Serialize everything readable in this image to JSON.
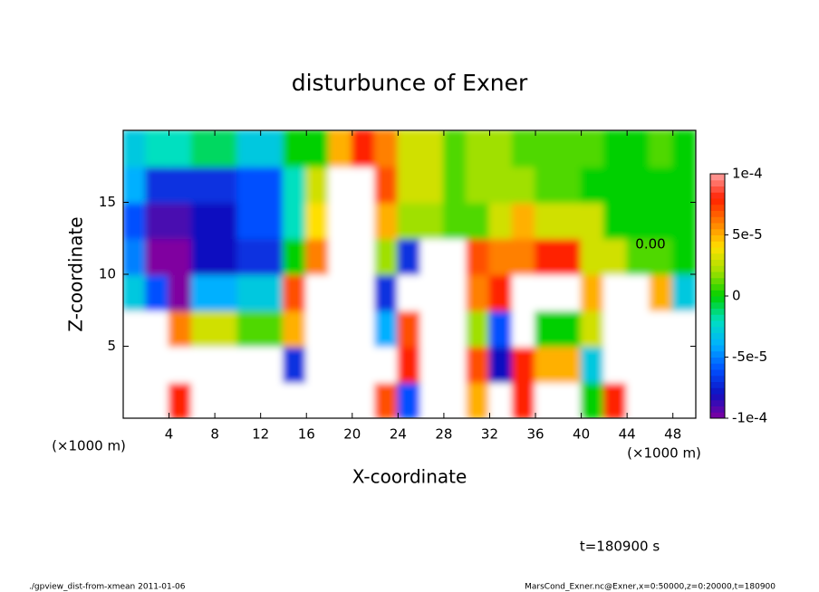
{
  "chart_data": {
    "type": "heatmap",
    "title": "disturbunce of Exner",
    "xlabel": "X-coordinate",
    "ylabel": "Z-coordinate",
    "xunit_left": "(×1000 m)",
    "xunit_right": "(×1000 m)",
    "contour_label": "0.00",
    "time_label": "t=180900 s",
    "footer_left": "./gpview_dist-from-xmean   2011-01-06",
    "footer_right": "MarsCond_Exner.nc@Exner,x=0:50000,z=0:20000,t=180900",
    "xlim": [
      0,
      50
    ],
    "ylim": [
      0,
      20
    ],
    "xticks": [
      4,
      8,
      12,
      16,
      20,
      24,
      28,
      32,
      36,
      40,
      44,
      48
    ],
    "yticks": [
      5,
      10,
      15
    ],
    "clim": [
      -0.0001,
      0.0001
    ],
    "cticks": [
      {
        "value": 0.0001,
        "label": "1e-4"
      },
      {
        "value": 5e-05,
        "label": "5e-5"
      },
      0,
      {
        "value": -5e-05,
        "label": "-5e-5"
      },
      {
        "value": -0.0001,
        "label": "-1e-4"
      }
    ],
    "colormap": [
      "#8000a0",
      "#1010c0",
      "#0050ff",
      "#00b0ff",
      "#00e0c0",
      "#00d000",
      "#a0e000",
      "#ffe000",
      "#ff8000",
      "#ff2000",
      "#ffa0a0"
    ],
    "out_of_range_color": "#ffffff",
    "x": [
      1,
      3,
      5,
      7,
      9,
      11,
      13,
      15,
      17,
      19,
      21,
      23,
      25,
      27,
      29,
      31,
      33,
      35,
      37,
      39,
      41,
      43,
      45,
      47,
      49
    ],
    "y": [
      1.25,
      3.75,
      6.25,
      8.75,
      11.25,
      13.75,
      16.25,
      18.75
    ],
    "z": [
      [
        -0.00016,
        -0.00011,
        8e-05,
        0.00012,
        0.00012,
        0.00011,
        0.00011,
        -0.00013,
        0.00011,
        0.00012,
        0.00012,
        7e-05,
        -6e-05,
        0.00012,
        0.00012,
        5e-05,
        0.00011,
        8e-05,
        0.00011,
        0.00011,
        0,
        8e-05,
        0.00012,
        0.00011,
        0.00011
      ],
      [
        -0.00014,
        -0.00011,
        0.00011,
        0.00012,
        0.00012,
        0.00013,
        0.00013,
        -7e-05,
        0.00011,
        0.00013,
        0.00013,
        0.00011,
        8e-05,
        0.00012,
        0.00012,
        7e-05,
        -8e-05,
        8e-05,
        5e-05,
        5e-05,
        -3e-05,
        0.00011,
        0.00014,
        -0.00013,
        -0.00015
      ],
      [
        -0.00015,
        -0.00012,
        6e-05,
        3e-05,
        3e-05,
        1e-05,
        1e-05,
        5e-05,
        0.00013,
        0.00013,
        0.00012,
        -4e-05,
        7e-05,
        0.00011,
        0.00011,
        2e-05,
        -6e-05,
        0.00011,
        0,
        0,
        3e-05,
        0.00014,
        0.0002,
        -0.00014,
        -0.00016
      ],
      [
        -3e-05,
        -6e-05,
        -0.0001,
        -4e-05,
        -4e-05,
        -3e-05,
        -3e-05,
        7e-05,
        0.00015,
        0.00012,
        0.00012,
        -7e-05,
        0.00015,
        0.00015,
        0.00012,
        6e-05,
        8e-05,
        0.00011,
        0.00012,
        0.00012,
        5e-05,
        0.00015,
        0.00015,
        5e-05,
        -3e-05
      ],
      [
        -5e-05,
        -0.0001,
        -0.0001,
        -8e-05,
        -8e-05,
        -7e-05,
        -7e-05,
        0,
        6e-05,
        0.00012,
        0.00012,
        2e-05,
        -7e-05,
        0.00012,
        0.00012,
        7e-05,
        6e-05,
        6e-05,
        8e-05,
        8e-05,
        3e-05,
        3e-05,
        1e-05,
        1e-05,
        0
      ],
      [
        -6e-05,
        -9e-05,
        -9e-05,
        -8e-05,
        -8e-05,
        -6e-05,
        -6e-05,
        -2e-05,
        4e-05,
        0.00015,
        0.00015,
        5e-05,
        2e-05,
        2e-05,
        1e-05,
        1e-05,
        3e-05,
        5e-05,
        3e-05,
        3e-05,
        3e-05,
        0,
        0,
        0,
        0
      ],
      [
        -4e-05,
        -7e-05,
        -7e-05,
        -7e-05,
        -7e-05,
        -6e-05,
        -6e-05,
        -2e-05,
        3e-05,
        0.00012,
        0.00012,
        7e-05,
        3e-05,
        3e-05,
        1e-05,
        2e-05,
        2e-05,
        2e-05,
        1e-05,
        1e-05,
        0,
        0,
        0,
        0,
        0
      ],
      [
        -3e-05,
        -2e-05,
        -2e-05,
        -1e-05,
        -1e-05,
        -3e-05,
        -3e-05,
        0,
        0,
        5e-05,
        8e-05,
        6e-05,
        3e-05,
        3e-05,
        1e-05,
        2e-05,
        2e-05,
        1e-05,
        1e-05,
        1e-05,
        1e-05,
        0,
        0,
        1e-05,
        0
      ]
    ]
  }
}
